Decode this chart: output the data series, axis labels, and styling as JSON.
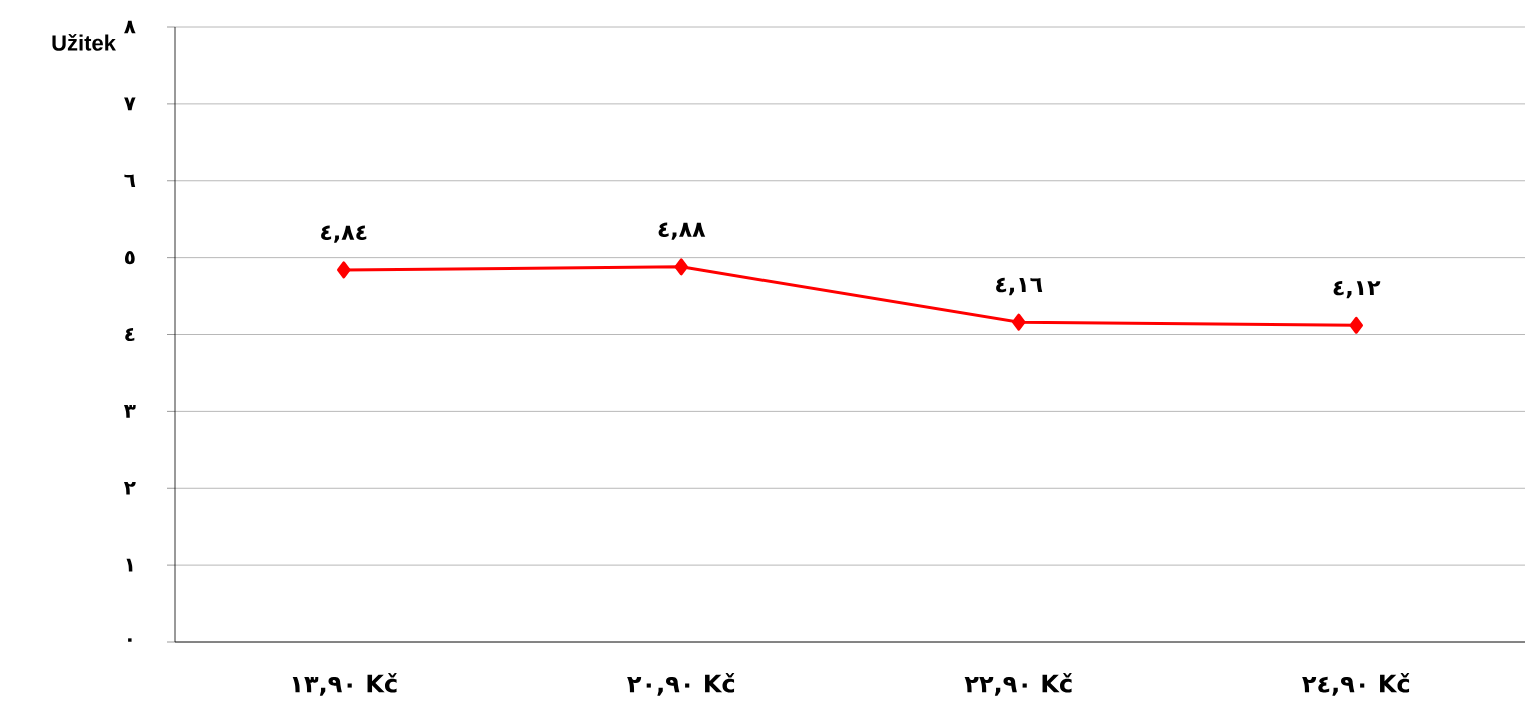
{
  "chart_data": {
    "type": "line",
    "ylabel": "Užitek",
    "categories": [
      "١٣,٩٠ Kč",
      "٢٠,٩٠ Kč",
      "٢٢,٩٠ Kč",
      "٢٤,٩٠ Kč"
    ],
    "series": [
      {
        "color": "#ff0000",
        "values": [
          4.84,
          4.88,
          4.16,
          4.12
        ],
        "value_labels": [
          "٤,٨٤",
          "٤,٨٨",
          "٤,١٦",
          "٤,١٢"
        ]
      }
    ],
    "ylim": [
      0,
      8
    ],
    "yticks": [
      {
        "value": 0,
        "label": "٠"
      },
      {
        "value": 1,
        "label": "١"
      },
      {
        "value": 2,
        "label": "٢"
      },
      {
        "value": 3,
        "label": "٣"
      },
      {
        "value": 4,
        "label": "٤"
      },
      {
        "value": 5,
        "label": "٥"
      },
      {
        "value": 6,
        "label": "٦"
      },
      {
        "value": 7,
        "label": "٧"
      },
      {
        "value": 8,
        "label": "٨"
      }
    ],
    "grid": "y",
    "marker": "diamond",
    "line_style": "solid"
  }
}
